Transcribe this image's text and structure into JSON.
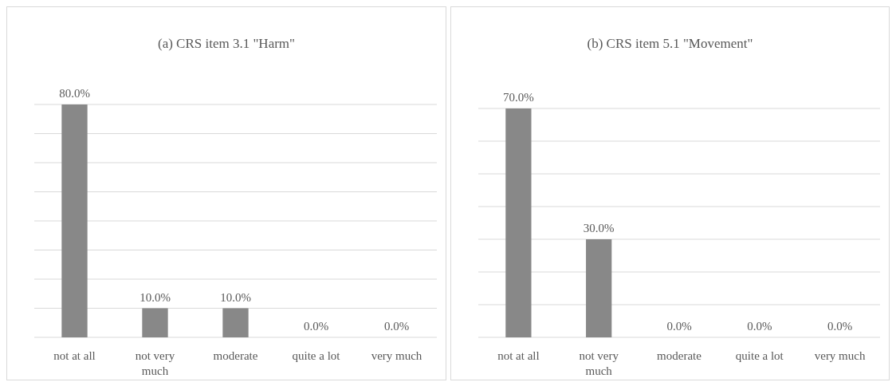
{
  "chart_data": [
    {
      "type": "bar",
      "title": "(a) CRS item 3.1 \"Harm\"",
      "categories": [
        "not at all",
        "not very much",
        "moderate",
        "quite a lot",
        "very much"
      ],
      "values": [
        80,
        10,
        10,
        0,
        0
      ],
      "value_labels": [
        "80.0%",
        "10.0%",
        "10.0%",
        "0.0%",
        "0.0%"
      ],
      "color": "#888888",
      "ylim": [
        0,
        80
      ],
      "yticks": [
        {
          "value": 0,
          "label": null
        },
        {
          "value": 10,
          "label": null
        },
        {
          "value": 20,
          "label": null
        },
        {
          "value": 30,
          "label": null
        },
        {
          "value": 40,
          "label": null
        },
        {
          "value": 50,
          "label": null
        },
        {
          "value": 60,
          "label": null
        },
        {
          "value": 70,
          "label": null
        },
        {
          "value": 80,
          "label": null
        }
      ],
      "grid": "y",
      "tick_labels": "x"
    },
    {
      "type": "bar",
      "title": "(b) CRS item 5.1 \"Movement\"",
      "categories": [
        "not at all",
        "not very much",
        "moderate",
        "quite a lot",
        "very much"
      ],
      "values": [
        70,
        30,
        0,
        0,
        0
      ],
      "value_labels": [
        "70.0%",
        "30.0%",
        "0.0%",
        "0.0%",
        "0.0%"
      ],
      "color": "#888888",
      "ylim": [
        0,
        70
      ],
      "yticks": [
        {
          "value": 0,
          "label": null
        },
        {
          "value": 10,
          "label": null
        },
        {
          "value": 20,
          "label": null
        },
        {
          "value": 30,
          "label": null
        },
        {
          "value": 40,
          "label": null
        },
        {
          "value": 50,
          "label": null
        },
        {
          "value": 60,
          "label": null
        },
        {
          "value": 70,
          "label": null
        }
      ],
      "grid": "y",
      "tick_labels": "x"
    }
  ]
}
